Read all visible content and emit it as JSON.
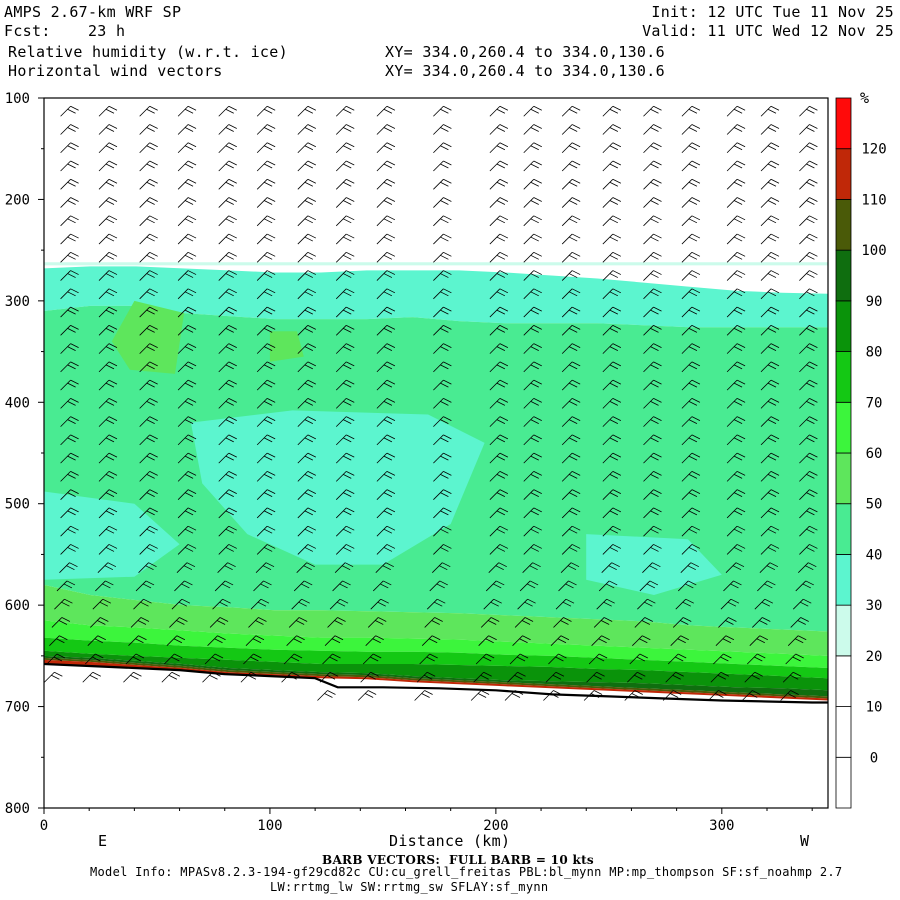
{
  "header": {
    "model_line": "AMPS 2.67-km WRF SP",
    "fcst_line": "Fcst:    23 h",
    "field1_line": "Relative humidity (w.r.t. ice)",
    "field2_line": "Horizontal wind vectors",
    "init_line": "Init: 12 UTC Tue 11 Nov 25",
    "valid_line": "Valid: 11 UTC Wed 12 Nov 25",
    "xy1_line": "XY= 334.0,260.4 to 334.0,130.6",
    "xy2_line": "XY= 334.0,260.4 to 334.0,130.6"
  },
  "footer": {
    "barb_note": "BARB VECTORS:  FULL BARB = 10 kts",
    "model_info_1": "Model Info: MPASv8.2.3-194-gf29cd82c CU:cu_grell_freitas PBL:bl_mynn MP:mp_thompson SF:sf_noahmp 2.7",
    "model_info_2": "LW:rrtmg_lw SW:rrtmg_sw SFLAY:sf_mynn"
  },
  "chart_data": {
    "type": "heatmap",
    "title": "Relative humidity (w.r.t. ice)",
    "xlabel": "Distance (km)",
    "ylabel": "",
    "xlim": [
      0,
      347
    ],
    "ylim": [
      100,
      800
    ],
    "y_inverted": true,
    "x_ticks": [
      0,
      100,
      200,
      300
    ],
    "y_ticks": [
      100,
      200,
      300,
      400,
      500,
      600,
      700,
      800
    ],
    "x_end_labels": [
      "E",
      "W"
    ],
    "colorbar": {
      "unit": "%",
      "levels": [
        0,
        10,
        20,
        30,
        40,
        50,
        60,
        70,
        80,
        90,
        100,
        110,
        120
      ],
      "colors": [
        "#ffffff",
        "#ffffff",
        "#ffffff",
        "#ccfbeb",
        "#5cf5cf",
        "#49eb92",
        "#5ee65c",
        "#3cf53c",
        "#14c814",
        "#0a930a",
        "#0f6e0f",
        "#4a5a08",
        "#c02808",
        "#ff0a0a"
      ]
    },
    "rh_layers": [
      {
        "range": "30-40",
        "top": [
          262,
          262,
          262,
          262,
          262,
          262,
          262,
          262,
          262,
          262,
          262,
          262,
          262,
          262,
          262,
          262,
          262,
          262
        ],
        "bottom": [
          265,
          265,
          265,
          265,
          265,
          265,
          265,
          265,
          265,
          265,
          265,
          265,
          265,
          265,
          265,
          265,
          265,
          265
        ]
      },
      {
        "range": "40-50",
        "top": [
          268,
          266,
          266,
          268,
          270,
          272,
          272,
          270,
          270,
          270,
          272,
          275,
          278,
          282,
          286,
          290,
          292,
          293
        ],
        "bottom": [
          310,
          305,
          305,
          312,
          315,
          318,
          318,
          318,
          316,
          320,
          322,
          322,
          322,
          324,
          326,
          326,
          326,
          326
        ]
      },
      {
        "range": "50-60",
        "top": [
          310,
          305,
          305,
          312,
          315,
          318,
          318,
          318,
          316,
          320,
          322,
          322,
          322,
          324,
          326,
          326,
          326,
          326
        ],
        "bottom": [
          580,
          590,
          595,
          600,
          602,
          605,
          605,
          606,
          607,
          608,
          610,
          612,
          614,
          616,
          620,
          622,
          624,
          626
        ]
      },
      {
        "range": "60-70",
        "top": [
          580,
          590,
          595,
          600,
          602,
          605,
          605,
          606,
          607,
          608,
          610,
          612,
          614,
          616,
          620,
          622,
          624,
          626
        ],
        "bottom": [
          615,
          620,
          622,
          625,
          628,
          630,
          632,
          632,
          633,
          634,
          636,
          638,
          640,
          642,
          644,
          646,
          648,
          650
        ]
      },
      {
        "range": "70-80",
        "top": [
          615,
          620,
          622,
          625,
          628,
          630,
          632,
          632,
          633,
          634,
          636,
          638,
          640,
          642,
          644,
          646,
          648,
          650
        ],
        "bottom": [
          632,
          635,
          637,
          640,
          642,
          644,
          645,
          646,
          646,
          647,
          649,
          650,
          652,
          654,
          656,
          658,
          660,
          662
        ]
      },
      {
        "range": "80-90",
        "top": [
          632,
          635,
          637,
          640,
          642,
          644,
          645,
          646,
          646,
          647,
          649,
          650,
          652,
          654,
          656,
          658,
          660,
          662
        ],
        "bottom": [
          645,
          648,
          650,
          652,
          654,
          656,
          658,
          658,
          658,
          659,
          660,
          661,
          663,
          664,
          666,
          668,
          670,
          672
        ]
      },
      {
        "range": "90-100",
        "top": [
          645,
          648,
          650,
          652,
          654,
          656,
          658,
          658,
          658,
          659,
          660,
          661,
          663,
          664,
          666,
          668,
          670,
          672
        ],
        "bottom": [
          650,
          652,
          655,
          658,
          662,
          664,
          666,
          667,
          670,
          672,
          674,
          675,
          676,
          677,
          679,
          681,
          682,
          684
        ]
      },
      {
        "range": "100-110",
        "top": [
          650,
          652,
          655,
          658,
          662,
          664,
          666,
          667,
          670,
          672,
          674,
          675,
          676,
          677,
          679,
          681,
          682,
          684
        ],
        "bottom": [
          652,
          654,
          657,
          660,
          664,
          666,
          668,
          669,
          672,
          674,
          676,
          678,
          680,
          682,
          684,
          686,
          688,
          690
        ]
      },
      {
        "range": "110-120",
        "top": [
          652,
          654,
          657,
          660,
          664,
          666,
          668,
          669,
          672,
          674,
          676,
          678,
          680,
          682,
          684,
          686,
          688,
          690
        ],
        "bottom": [
          654,
          656,
          659,
          662,
          666,
          668,
          670,
          671,
          674,
          676,
          678,
          680,
          682,
          684,
          686,
          688,
          690,
          692
        ]
      },
      {
        "range": ">120",
        "top": [
          654,
          656,
          659,
          662,
          666,
          668,
          670,
          671,
          674,
          676,
          678,
          680,
          682,
          684,
          686,
          688,
          690,
          692
        ],
        "bottom": [
          658,
          660,
          662,
          664,
          668,
          670,
          672,
          673,
          676,
          678,
          680,
          682,
          684,
          686,
          688,
          690,
          692,
          694
        ]
      }
    ],
    "terrain_pressure": {
      "x": [
        0,
        20,
        40,
        60,
        80,
        100,
        120,
        130,
        150,
        175,
        200,
        225,
        250,
        275,
        300,
        320,
        340,
        347
      ],
      "p": [
        658,
        660,
        662,
        664,
        668,
        670,
        672,
        681,
        681,
        682,
        684,
        688,
        690,
        692,
        694,
        695,
        696,
        696
      ]
    },
    "barb_columns_x": [
      10,
      27,
      45,
      62,
      80,
      97,
      115,
      132,
      150,
      175,
      200,
      215,
      232,
      250,
      268,
      285,
      305,
      320,
      337
    ]
  }
}
